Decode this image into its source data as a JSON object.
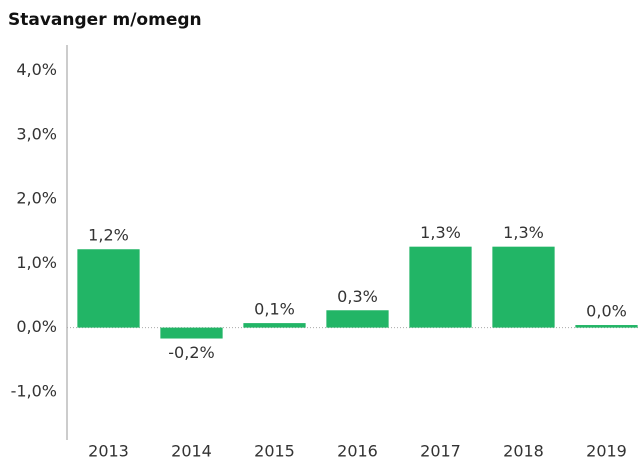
{
  "chart_data": {
    "type": "bar",
    "title": "Stavanger m/omegn",
    "categories": [
      "2013",
      "2014",
      "2015",
      "2016",
      "2017",
      "2018",
      "2019"
    ],
    "values": [
      1.22,
      -0.17,
      0.07,
      0.27,
      1.26,
      1.26,
      0.04
    ],
    "value_labels": [
      "1,2%",
      "-0,2%",
      "0,1%",
      "0,3%",
      "1,3%",
      "1,3%",
      "0,0%"
    ],
    "color": "#22b566",
    "ylim": [
      -1.75,
      4.4
    ],
    "yticks": [
      {
        "value": -1,
        "label": "-1,0%"
      },
      {
        "value": 0,
        "label": "0,0%"
      },
      {
        "value": 1,
        "label": "1,0%"
      },
      {
        "value": 2,
        "label": "2,0%"
      },
      {
        "value": 3,
        "label": "3,0%"
      },
      {
        "value": 4,
        "label": "4,0%"
      }
    ],
    "grid": false
  }
}
